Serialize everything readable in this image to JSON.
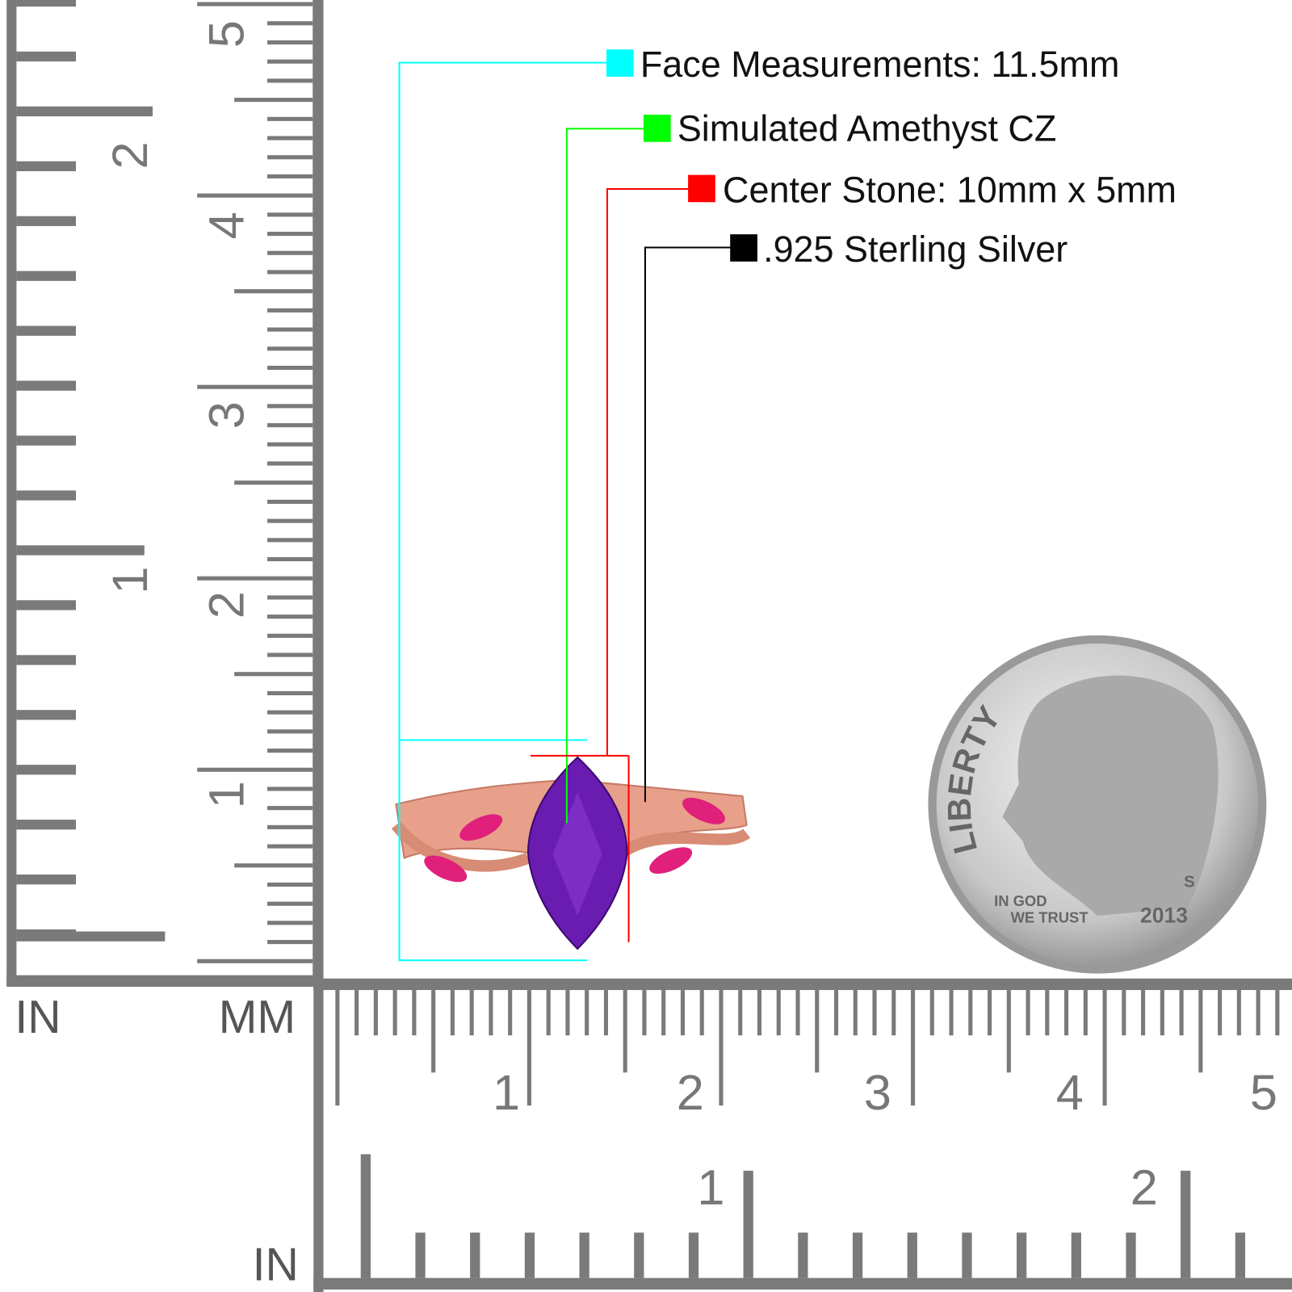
{
  "specs": [
    {
      "text": "Face Measurements: 11.5mm",
      "color": "#00ffff"
    },
    {
      "text": "Simulated Amethyst CZ",
      "color": "#00ff00"
    },
    {
      "text": "Center Stone: 10mm x 5mm",
      "color": "#ff0000"
    },
    {
      "text": ".925 Sterling Silver",
      "color": "#000000"
    }
  ],
  "rulers": {
    "left_in_label": "IN",
    "left_mm_label": "MM",
    "bottom_in_label": "IN",
    "vertical_inch_numbers": [
      "1",
      "2"
    ],
    "vertical_cm_numbers": [
      "1",
      "2",
      "3",
      "4",
      "5"
    ],
    "horizontal_cm_numbers": [
      "1",
      "2",
      "3",
      "4",
      "5"
    ],
    "horizontal_inch_numbers": [
      "1",
      "2"
    ],
    "ruler_color": "#7a7a7a"
  },
  "ring": {
    "metal_color": "#e8a08a",
    "center_stone_color": "#6a1bb0",
    "side_stone_color": "#e0207a"
  },
  "coin": {
    "lettering": [
      "LIBERTY",
      "IN GOD",
      "WE TRUST",
      "2013",
      "S"
    ]
  }
}
